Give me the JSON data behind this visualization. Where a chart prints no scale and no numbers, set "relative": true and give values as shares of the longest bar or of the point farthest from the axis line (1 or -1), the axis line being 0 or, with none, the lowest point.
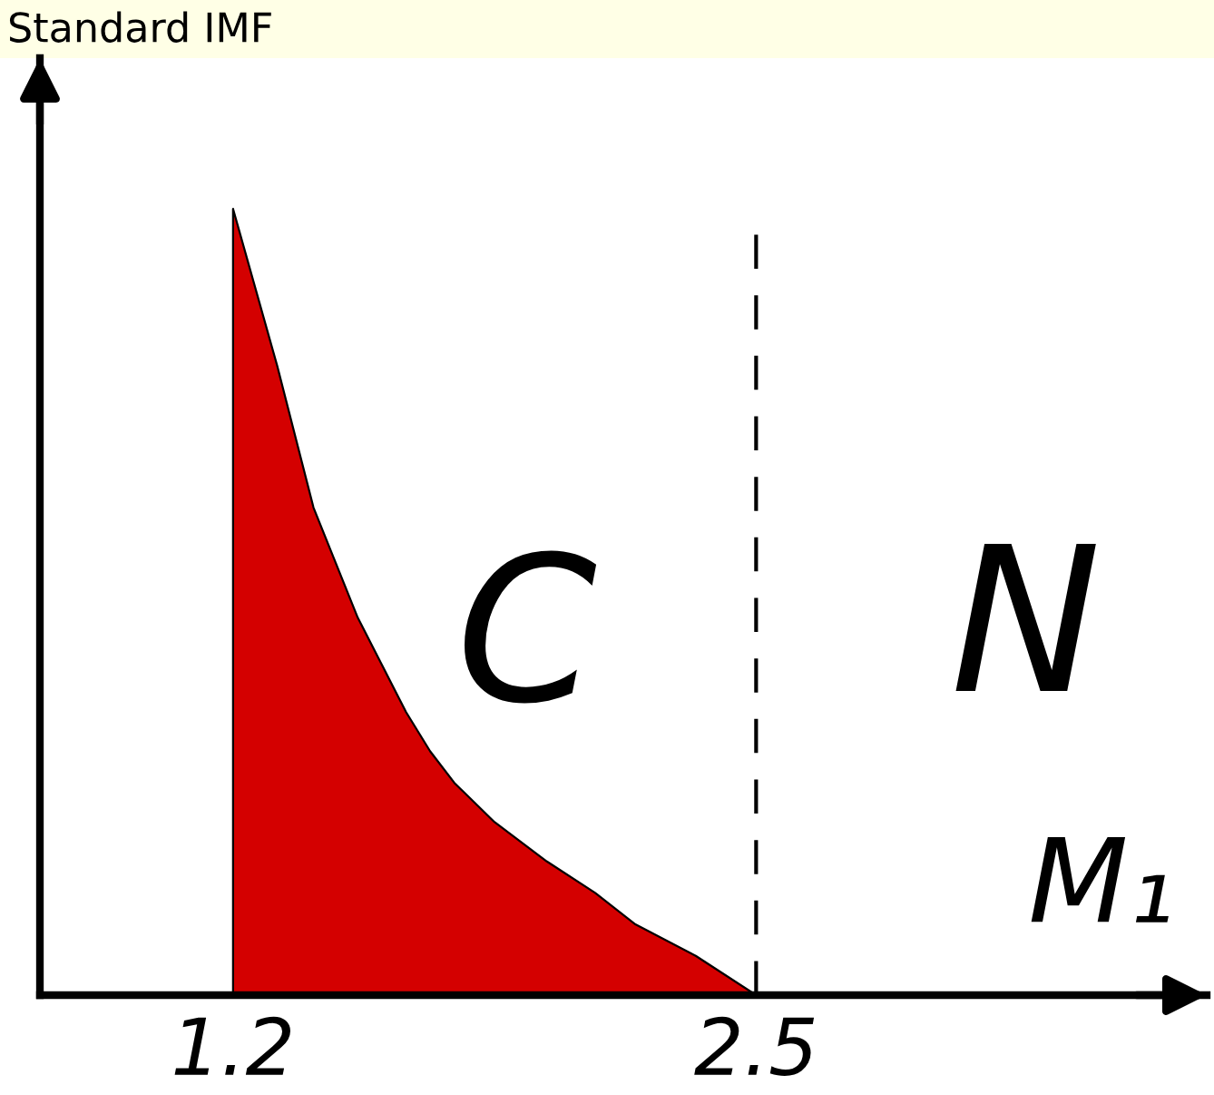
{
  "chart_data": {
    "type": "area",
    "relative": true,
    "ylabel": "Standard IMF",
    "xlabel": "M₁",
    "x": [
      1.2,
      1.31,
      1.4,
      1.51,
      1.57,
      1.63,
      1.69,
      1.75,
      1.85,
      1.98,
      2.1,
      2.2,
      2.35,
      2.5
    ],
    "values": [
      1,
      0.8,
      0.62,
      0.48,
      0.42,
      0.36,
      0.31,
      0.27,
      0.22,
      0.17,
      0.13,
      0.09,
      0.05,
      0
    ],
    "color": "#d40000",
    "xlim": [
      0.72,
      3.62
    ],
    "xticks": [
      1.2,
      2.5
    ],
    "tick_labels": "x",
    "ref_lines": [
      {
        "axis": "x",
        "value": 2.5,
        "color": "#000000",
        "line_style": "dashed"
      }
    ],
    "annotations": [
      "C",
      "N"
    ]
  }
}
